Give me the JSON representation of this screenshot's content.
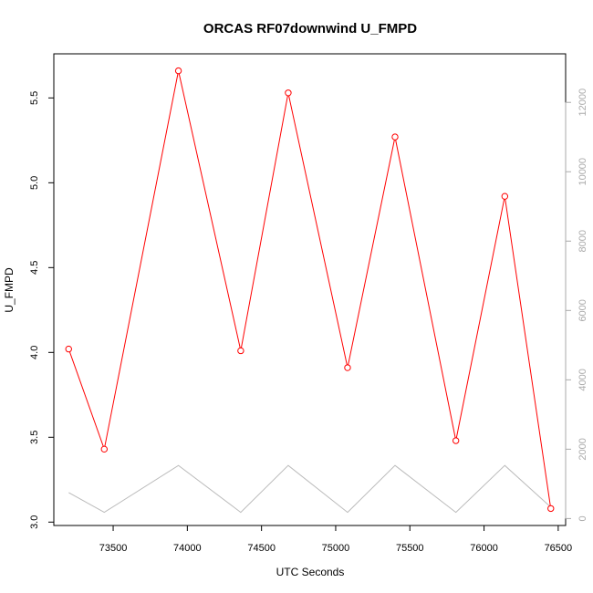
{
  "chart_data": {
    "type": "line",
    "title": "ORCAS RF07downwind U_FMPD",
    "xlabel": "UTC Seconds",
    "ylabel": "U_FMPD",
    "xlim": [
      73100,
      76550
    ],
    "ylim": [
      2.98,
      5.76
    ],
    "ylim_right": [
      -200,
      13400
    ],
    "x_ticks": [
      73500,
      74000,
      74500,
      75000,
      75500,
      76000,
      76500
    ],
    "y_ticks": [
      3.0,
      3.5,
      4.0,
      4.5,
      5.0,
      5.5
    ],
    "y_tick_labels": [
      "3.0",
      "3.5",
      "4.0",
      "4.5",
      "5.0",
      "5.5"
    ],
    "y_right_ticks": [
      0,
      2000,
      4000,
      6000,
      8000,
      10000,
      12000
    ],
    "grid": false,
    "series": [
      {
        "color": "#ff0000",
        "axis": "left",
        "marker": "open-circle",
        "x": [
          73200,
          73440,
          73940,
          74360,
          74680,
          75080,
          75400,
          75810,
          76140,
          76450
        ],
        "y": [
          4.02,
          3.43,
          5.66,
          4.01,
          5.53,
          3.91,
          5.27,
          3.48,
          4.92,
          3.08
        ]
      },
      {
        "color": "#bbbbbb",
        "axis": "right",
        "marker": "none",
        "x": [
          73200,
          73440,
          73940,
          74360,
          74680,
          75080,
          75400,
          75810,
          76140,
          76450
        ],
        "y": [
          750,
          180,
          1530,
          180,
          1530,
          180,
          1530,
          180,
          1530,
          330
        ]
      }
    ]
  }
}
